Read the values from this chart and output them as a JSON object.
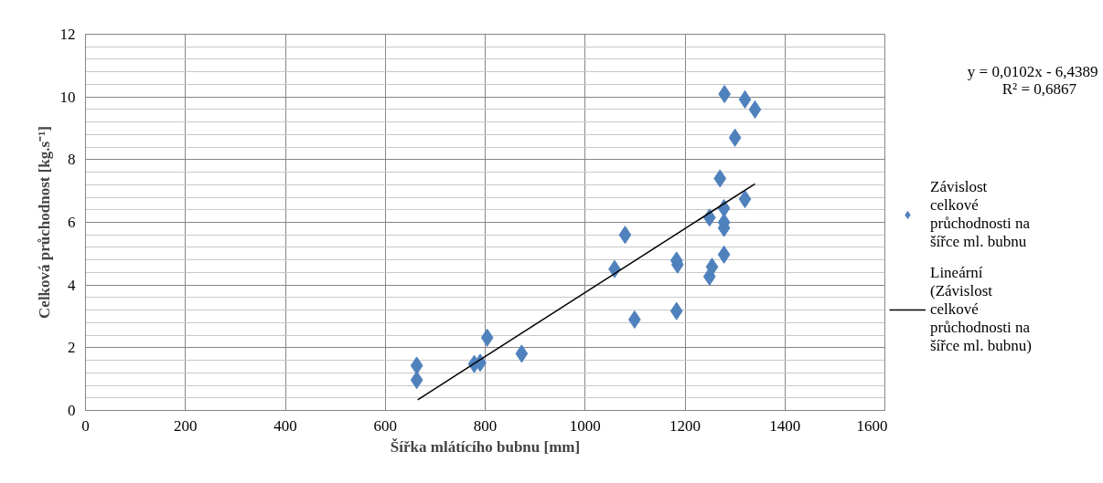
{
  "chart_data": {
    "type": "scatter",
    "xlabel": "Šířka mlátícího bubnu [mm]",
    "ylabel": "Celková průchodnost [kg.s⁻¹]",
    "annotations": [
      "y = 0,0102x - 6,4389",
      "R² = 0,6867"
    ],
    "xlim": [
      0,
      1600
    ],
    "xticks": [
      0,
      200,
      400,
      600,
      800,
      1000,
      1200,
      1400,
      1600
    ],
    "ylim": [
      0,
      12
    ],
    "yticks": [
      0,
      2,
      4,
      6,
      8,
      10,
      12
    ],
    "grid": true,
    "legend": "right",
    "marker": "diamond",
    "series": [
      {
        "name": "Závislost celkové průchodnosti na šířce ml. bubnu",
        "color": "#4f81bd",
        "x": [
          663,
          663,
          778,
          790,
          804,
          873,
          1059,
          1080,
          1099,
          1183,
          1183,
          1185,
          1249,
          1254,
          1278,
          1278,
          1278,
          1278,
          1249,
          1320,
          1270,
          1300,
          1279,
          1320,
          1340
        ],
        "values": [
          1.43,
          0.97,
          1.48,
          1.52,
          2.32,
          1.81,
          4.51,
          5.6,
          2.9,
          3.17,
          4.78,
          4.65,
          4.27,
          4.58,
          4.97,
          5.82,
          6.0,
          6.45,
          6.15,
          6.74,
          7.4,
          8.7,
          10.09,
          9.92,
          9.6
        ]
      },
      {
        "name": "Lineární (Závislost celkové průchodnosti na šířce ml. bubnu)",
        "type": "line",
        "color": "#000000",
        "marker": "none",
        "x": [
          665,
          1340
        ],
        "values": [
          0.34,
          7.23
        ]
      }
    ]
  }
}
